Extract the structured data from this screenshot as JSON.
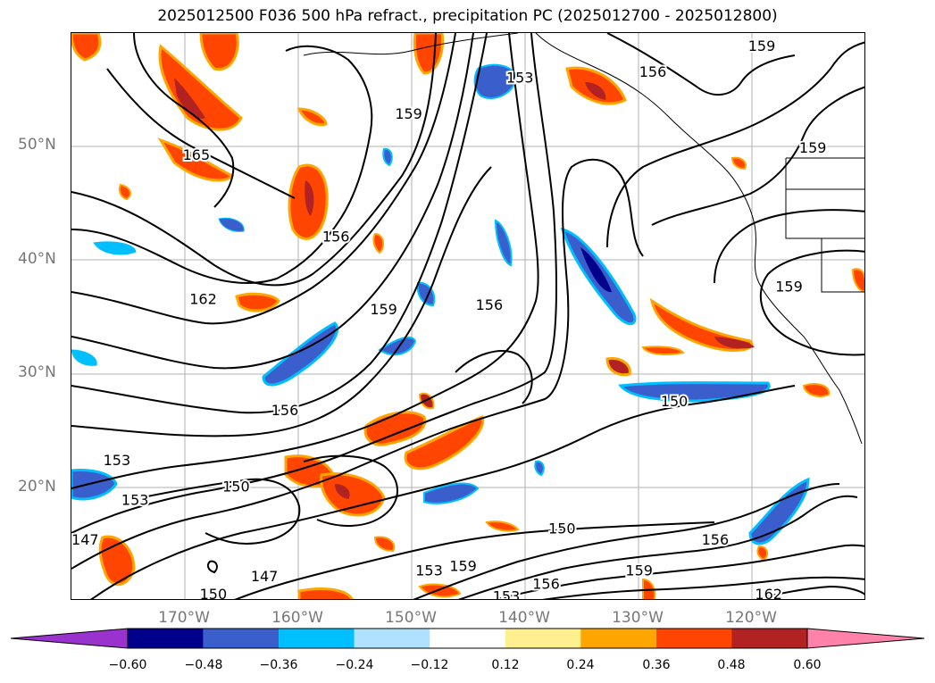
{
  "title": "2025012500 F036 500 hPa refract., precipitation PC (2025012700 - 2025012800)",
  "map": {
    "projection": "lat-lon",
    "lon_range": [
      "180°W",
      "110°W"
    ],
    "lat_range": [
      "10°N",
      "60°N"
    ],
    "lat_labels": [
      "50°N",
      "40°N",
      "30°N",
      "20°N"
    ],
    "lon_labels": [
      "170°W",
      "160°W",
      "150°W",
      "140°W",
      "130°W",
      "120°W"
    ],
    "gridlines": true,
    "contour_color": "#000000",
    "contour_labels": [
      {
        "text": "159",
        "lon": -150.3,
        "lat": 52.8
      },
      {
        "text": "153",
        "lon": -140.5,
        "lat": 56.0
      },
      {
        "text": "156",
        "lon": -128.8,
        "lat": 56.5
      },
      {
        "text": "159",
        "lon": -119.2,
        "lat": 58.8
      },
      {
        "text": "159",
        "lon": -114.7,
        "lat": 49.8
      },
      {
        "text": "165",
        "lon": -169.0,
        "lat": 49.2
      },
      {
        "text": "156",
        "lon": -156.7,
        "lat": 42.0
      },
      {
        "text": "162",
        "lon": -168.4,
        "lat": 36.5
      },
      {
        "text": "159",
        "lon": -152.5,
        "lat": 35.6
      },
      {
        "text": "156",
        "lon": -143.2,
        "lat": 36.0
      },
      {
        "text": "159",
        "lon": -116.8,
        "lat": 37.6
      },
      {
        "text": "156",
        "lon": -161.2,
        "lat": 26.7
      },
      {
        "text": "150",
        "lon": -126.9,
        "lat": 27.5
      },
      {
        "text": "153",
        "lon": -176.0,
        "lat": 22.3
      },
      {
        "text": "153",
        "lon": -174.4,
        "lat": 18.8
      },
      {
        "text": "150",
        "lon": -165.5,
        "lat": 20.0
      },
      {
        "text": "147",
        "lon": -178.8,
        "lat": 15.3
      },
      {
        "text": "150",
        "lon": -136.8,
        "lat": 16.3
      },
      {
        "text": "156",
        "lon": -123.3,
        "lat": 15.3
      },
      {
        "text": "147",
        "lon": -163.0,
        "lat": 12.1
      },
      {
        "text": "153",
        "lon": -148.5,
        "lat": 12.6
      },
      {
        "text": "159",
        "lon": -145.5,
        "lat": 13.0
      },
      {
        "text": "159",
        "lon": -130.0,
        "lat": 12.6
      },
      {
        "text": "156",
        "lon": -138.2,
        "lat": 11.4
      },
      {
        "text": "153",
        "lon": -141.7,
        "lat": 10.3
      },
      {
        "text": "150",
        "lon": -167.5,
        "lat": 10.5
      },
      {
        "text": "162",
        "lon": -118.6,
        "lat": 10.5
      }
    ]
  },
  "colorbar": {
    "ticks": [
      "−0.60",
      "−0.48",
      "−0.36",
      "−0.24",
      "−0.12",
      "0.12",
      "0.24",
      "0.36",
      "0.48",
      "0.60"
    ],
    "tick_values": [
      -0.6,
      -0.48,
      -0.36,
      -0.24,
      -0.12,
      0.12,
      0.24,
      0.36,
      0.48,
      0.6
    ],
    "colors": [
      "#9a32cd",
      "#00008b",
      "#3a5fcd",
      "#00bfff",
      "#b0e2ff",
      "#ffffff",
      "#fff08f",
      "#ffa500",
      "#ff4500",
      "#b22222",
      "#ff82ab"
    ],
    "extend": "both"
  }
}
